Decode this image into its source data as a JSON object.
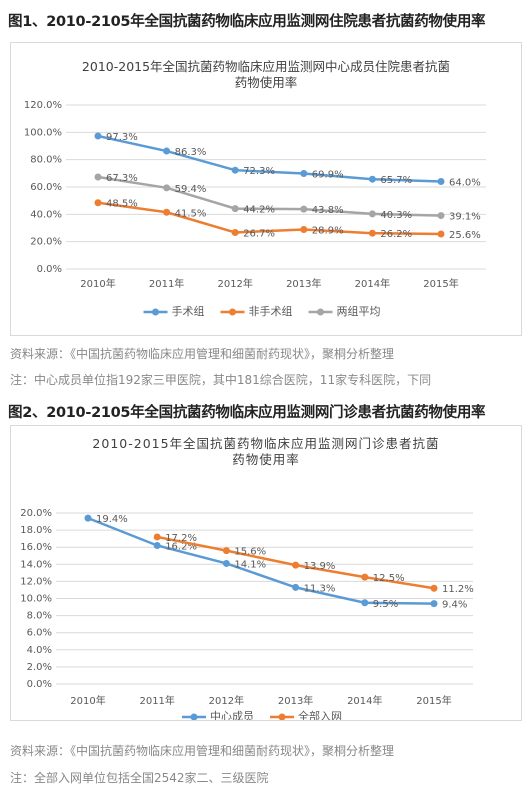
{
  "figures": [
    {
      "heading": "图1、2010-2105年全国抗菌药物临床应用监测网住院患者抗菌药物使用率",
      "source": "资料来源：《中国抗菌药物临床应用管理和细菌耐药现状》，聚桐分析整理",
      "note": "注：中心成员单位指192家三甲医院，其中181综合医院，11家专科医院，下同"
    },
    {
      "heading": "图2、2010-2105年全国抗菌药物临床应用监测网门诊患者抗菌药物使用率",
      "source": "资料来源：《中国抗菌药物临床应用管理和细菌耐药现状》，聚桐分析整理",
      "note": "注：全部入网单位包括全国2542家二、三级医院"
    }
  ],
  "chart_data": [
    {
      "type": "line",
      "title": "2010-2015年全国抗菌药物临床应用监测网中心成员住院患者抗菌药物使用率",
      "categories": [
        "2010年",
        "2011年",
        "2012年",
        "2013年",
        "2014年",
        "2015年"
      ],
      "series": [
        {
          "name": "手术组",
          "color": "#5b9bd5",
          "values": [
            97.3,
            86.3,
            72.3,
            69.9,
            65.7,
            64.0
          ],
          "value_labels": [
            "97.3%",
            "86.3%",
            "72.3%",
            "69.9%",
            "65.7%",
            "64.0%"
          ]
        },
        {
          "name": "非手术组",
          "color": "#ed7d31",
          "values": [
            48.5,
            41.5,
            26.7,
            28.9,
            26.2,
            25.6
          ],
          "value_labels": [
            "48.5%",
            "41.5%",
            "26.7%",
            "28.9%",
            "26.2%",
            "25.6%"
          ]
        },
        {
          "name": "两组平均",
          "color": "#a5a5a5",
          "values": [
            67.3,
            59.4,
            44.2,
            43.8,
            40.3,
            39.1
          ],
          "value_labels": [
            "67.3%",
            "59.4%",
            "44.2%",
            "43.8%",
            "40.3%",
            "39.1%"
          ]
        }
      ],
      "ylim": [
        0,
        120
      ],
      "yticks": [
        {
          "value": 0,
          "label": "0.0%"
        },
        {
          "value": 20,
          "label": "20.0%"
        },
        {
          "value": 40,
          "label": "40.0%"
        },
        {
          "value": 60,
          "label": "60.0%"
        },
        {
          "value": 80,
          "label": "80.0%"
        },
        {
          "value": 100,
          "label": "100.0%"
        },
        {
          "value": 120,
          "label": "120.0%"
        }
      ],
      "grid": true,
      "legend": "bottom"
    },
    {
      "type": "line",
      "title": "2010-2015年全国抗菌药物临床应用监测网门诊患者抗菌药物使用率",
      "categories": [
        "2010年",
        "2011年",
        "2012年",
        "2013年",
        "2014年",
        "2015年"
      ],
      "series": [
        {
          "name": "中心成员",
          "color": "#5b9bd5",
          "values": [
            19.4,
            16.2,
            14.1,
            11.3,
            9.5,
            9.4
          ],
          "value_labels": [
            "19.4%",
            "16.2%",
            "14.1%",
            "11.3%",
            "9.5%",
            "9.4%"
          ]
        },
        {
          "name": "全部入网",
          "color": "#ed7d31",
          "values": [
            null,
            17.2,
            15.6,
            13.9,
            12.5,
            11.2
          ],
          "value_labels": [
            null,
            "17.2%",
            "15.6%",
            "13.9%",
            "12.5%",
            "11.2%"
          ]
        }
      ],
      "ylim": [
        0,
        20
      ],
      "yticks": [
        {
          "value": 0,
          "label": "0.0%"
        },
        {
          "value": 2,
          "label": "2.0%"
        },
        {
          "value": 4,
          "label": "4.0%"
        },
        {
          "value": 6,
          "label": "6.0%"
        },
        {
          "value": 8,
          "label": "8.0%"
        },
        {
          "value": 10,
          "label": "10.0%"
        },
        {
          "value": 12,
          "label": "12.0%"
        },
        {
          "value": 14,
          "label": "14.0%"
        },
        {
          "value": 16,
          "label": "16.0%"
        },
        {
          "value": 18,
          "label": "18.0%"
        },
        {
          "value": 20,
          "label": "20.0%"
        }
      ],
      "grid": true,
      "legend": "bottom"
    }
  ]
}
